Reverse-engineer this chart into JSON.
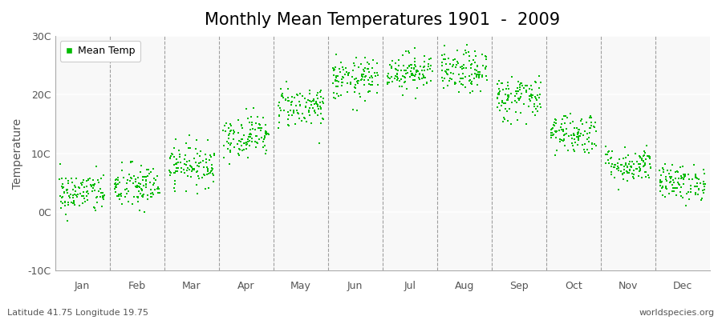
{
  "title": "Monthly Mean Temperatures 1901  -  2009",
  "ylabel": "Temperature",
  "bg_color": "#f0f0f0",
  "plot_bg_color": "#f8f8f8",
  "dot_color": "#00bb00",
  "dot_size": 3,
  "ylim": [
    -10,
    30
  ],
  "ytick_labels": [
    "-10C",
    "0C",
    "10C",
    "20C",
    "30C"
  ],
  "ytick_values": [
    -10,
    0,
    10,
    20,
    30
  ],
  "month_names": [
    "Jan",
    "Feb",
    "Mar",
    "Apr",
    "May",
    "Jun",
    "Jul",
    "Aug",
    "Sep",
    "Oct",
    "Nov",
    "Dec"
  ],
  "month_means": [
    3.2,
    4.2,
    8.0,
    13.0,
    18.0,
    22.5,
    24.0,
    23.8,
    19.5,
    13.5,
    8.0,
    5.0
  ],
  "month_stds": [
    1.8,
    2.0,
    1.8,
    1.8,
    1.8,
    1.8,
    1.6,
    1.8,
    2.0,
    1.8,
    1.5,
    1.5
  ],
  "n_years": 109,
  "footer_left": "Latitude 41.75 Longitude 19.75",
  "footer_right": "worldspecies.org",
  "legend_label": "Mean Temp",
  "title_fontsize": 15,
  "axis_fontsize": 10,
  "tick_fontsize": 9,
  "footer_fontsize": 8
}
